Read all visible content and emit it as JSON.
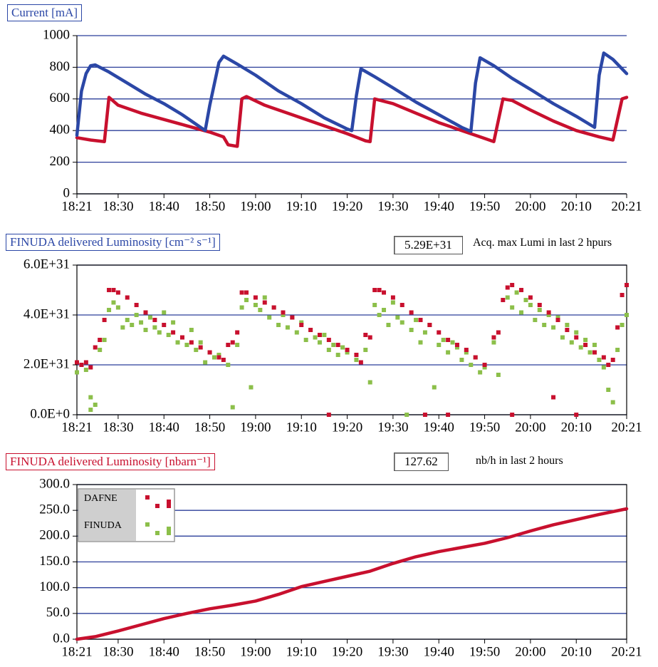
{
  "chart_data": [
    {
      "type": "line",
      "title": "Current [mA]",
      "title_color": "#2b47a6",
      "xlim": [
        "18:21",
        "20:21"
      ],
      "xticks": [
        "18:21",
        "18:30",
        "18:40",
        "18:50",
        "19:00",
        "19:10",
        "19:20",
        "19:30",
        "19:40",
        "19:50",
        "20:00",
        "20:10",
        "20:21"
      ],
      "ylim": [
        0,
        1000
      ],
      "yticks": [
        0,
        200,
        400,
        600,
        800,
        1000
      ],
      "grid": true,
      "series": [
        {
          "color": "#2b47a6",
          "x": [
            "18:21",
            "18:22",
            "18:23",
            "18:24",
            "18:25",
            "18:28",
            "18:32",
            "18:36",
            "18:40",
            "18:44",
            "18:48",
            "18:49",
            "18:50",
            "18:52",
            "18:53",
            "18:56",
            "19:00",
            "19:05",
            "19:10",
            "19:15",
            "19:20",
            "19:21",
            "19:22",
            "19:23",
            "19:26",
            "19:30",
            "19:35",
            "19:40",
            "19:45",
            "19:47",
            "19:48",
            "19:49",
            "19:52",
            "19:56",
            "20:00",
            "20:05",
            "20:10",
            "20:14",
            "20:15",
            "20:16",
            "20:18",
            "20:21"
          ],
          "values": [
            370,
            650,
            760,
            810,
            815,
            770,
            700,
            630,
            570,
            500,
            420,
            400,
            560,
            830,
            870,
            820,
            750,
            650,
            570,
            480,
            410,
            400,
            620,
            790,
            740,
            670,
            580,
            500,
            420,
            395,
            700,
            860,
            810,
            730,
            660,
            570,
            490,
            420,
            750,
            890,
            850,
            760
          ]
        },
        {
          "color": "#c8102e",
          "x": [
            "18:21",
            "18:24",
            "18:27",
            "18:28",
            "18:30",
            "18:35",
            "18:40",
            "18:45",
            "18:50",
            "18:53",
            "18:54",
            "18:56",
            "18:57",
            "18:58",
            "19:02",
            "19:08",
            "19:14",
            "19:20",
            "19:24",
            "19:25",
            "19:26",
            "19:30",
            "19:35",
            "19:40",
            "19:45",
            "19:50",
            "19:52",
            "19:54",
            "19:56",
            "20:00",
            "20:05",
            "20:10",
            "20:15",
            "20:18",
            "20:20",
            "20:21"
          ],
          "values": [
            355,
            340,
            330,
            610,
            560,
            510,
            470,
            430,
            390,
            360,
            310,
            300,
            600,
            615,
            560,
            500,
            440,
            380,
            335,
            330,
            600,
            570,
            510,
            450,
            400,
            350,
            330,
            600,
            590,
            530,
            460,
            400,
            360,
            340,
            600,
            610
          ]
        }
      ]
    },
    {
      "type": "scatter",
      "title": "FINUDA delivered Luminosity [cm⁻² s⁻¹]",
      "title_color": "#2b47a6",
      "annotations": [
        "5.29E+31",
        "Acq. max Lumi in last 2 hpurs"
      ],
      "xlim": [
        "18:21",
        "20:21"
      ],
      "xticks": [
        "18:21",
        "18:30",
        "18:40",
        "18:50",
        "19:00",
        "19:10",
        "19:20",
        "19:30",
        "19:40",
        "19:50",
        "20:00",
        "20:10",
        "20:21"
      ],
      "ylim": [
        0,
        6e+31
      ],
      "yticks": [
        {
          "value": 0,
          "label": "0.0E+0"
        },
        {
          "value": 2e+31,
          "label": "2.0E+31"
        },
        {
          "value": 4e+31,
          "label": "4.0E+31"
        },
        {
          "value": 6e+31,
          "label": "6.0E+31"
        }
      ],
      "grid": true,
      "series": [
        {
          "name": "DAFNE",
          "color": "#c8102e",
          "x": [
            "18:21",
            "18:22",
            "18:23",
            "18:24",
            "18:25",
            "18:26",
            "18:27",
            "18:28",
            "18:29",
            "18:30",
            "18:32",
            "18:34",
            "18:36",
            "18:38",
            "18:40",
            "18:42",
            "18:44",
            "18:46",
            "18:48",
            "18:50",
            "18:52",
            "18:53",
            "18:54",
            "18:55",
            "18:56",
            "18:57",
            "18:58",
            "19:00",
            "19:02",
            "19:04",
            "19:06",
            "19:08",
            "19:10",
            "19:12",
            "19:14",
            "19:16",
            "19:16",
            "19:18",
            "19:20",
            "19:22",
            "19:23",
            "19:24",
            "19:25",
            "19:26",
            "19:27",
            "19:28",
            "19:30",
            "19:32",
            "19:34",
            "19:36",
            "19:37",
            "19:38",
            "19:40",
            "19:42",
            "19:42",
            "19:44",
            "19:46",
            "19:48",
            "19:50",
            "19:52",
            "19:53",
            "19:54",
            "19:55",
            "19:56",
            "19:56",
            "19:58",
            "20:00",
            "20:02",
            "20:04",
            "20:05",
            "20:06",
            "20:08",
            "20:10",
            "20:10",
            "20:12",
            "20:14",
            "20:16",
            "20:17",
            "20:18",
            "20:19",
            "20:20",
            "20:21"
          ],
          "values": [
            2.1e+31,
            2e+31,
            2.1e+31,
            1.9e+31,
            2.7e+31,
            3e+31,
            3.8e+31,
            5e+31,
            5e+31,
            4.9e+31,
            4.7e+31,
            4.4e+31,
            4.1e+31,
            3.8e+31,
            3.6e+31,
            3.3e+31,
            3.1e+31,
            2.9e+31,
            2.7e+31,
            2.5e+31,
            2.3e+31,
            2.2e+31,
            2.8e+31,
            2.9e+31,
            3.3e+31,
            4.9e+31,
            4.9e+31,
            4.7e+31,
            4.5e+31,
            4.3e+31,
            4.1e+31,
            3.9e+31,
            3.6e+31,
            3.4e+31,
            3.2e+31,
            3e+31,
            0,
            2.8e+31,
            2.6e+31,
            2.4e+31,
            2.1e+31,
            3.2e+31,
            3.1e+31,
            5e+31,
            5e+31,
            4.9e+31,
            4.7e+31,
            4.4e+31,
            4.1e+31,
            3.8e+31,
            0,
            3.6e+31,
            3.3e+31,
            3e+31,
            0,
            2.8e+31,
            2.6e+31,
            2.3e+31,
            2e+31,
            3.1e+31,
            3.3e+31,
            4.6e+31,
            5.1e+31,
            5.2e+31,
            0,
            5e+31,
            4.7e+31,
            4.4e+31,
            4.1e+31,
            7e+30,
            3.8e+31,
            3.4e+31,
            3.1e+31,
            0,
            2.8e+31,
            2.5e+31,
            2.3e+31,
            2e+31,
            2.2e+31,
            3.5e+31,
            4.8e+31,
            5.2e+31
          ]
        },
        {
          "name": "FINUDA",
          "color": "#8cbf4a",
          "x": [
            "18:21",
            "18:22",
            "18:23",
            "18:24",
            "18:25",
            "18:24",
            "18:26",
            "18:27",
            "18:28",
            "18:29",
            "18:30",
            "18:31",
            "18:32",
            "18:33",
            "18:34",
            "18:35",
            "18:36",
            "18:37",
            "18:38",
            "18:39",
            "18:40",
            "18:41",
            "18:42",
            "18:43",
            "18:44",
            "18:45",
            "18:46",
            "18:47",
            "18:48",
            "18:49",
            "18:50",
            "18:51",
            "18:52",
            "18:54",
            "18:55",
            "18:56",
            "18:57",
            "18:58",
            "18:59",
            "19:00",
            "19:01",
            "19:02",
            "19:03",
            "19:04",
            "19:05",
            "19:06",
            "19:07",
            "19:08",
            "19:09",
            "19:10",
            "19:11",
            "19:12",
            "19:13",
            "19:14",
            "19:15",
            "19:16",
            "19:17",
            "19:18",
            "19:19",
            "19:20",
            "19:22",
            "19:24",
            "19:25",
            "19:26",
            "19:27",
            "19:28",
            "19:29",
            "19:30",
            "19:31",
            "19:32",
            "19:33",
            "19:34",
            "19:35",
            "19:36",
            "19:37",
            "19:38",
            "19:39",
            "19:40",
            "19:41",
            "19:42",
            "19:43",
            "19:44",
            "19:45",
            "19:46",
            "19:47",
            "19:48",
            "19:49",
            "19:50",
            "19:52",
            "19:53",
            "19:55",
            "19:56",
            "19:57",
            "19:58",
            "19:59",
            "20:00",
            "20:01",
            "20:02",
            "20:03",
            "20:04",
            "20:05",
            "20:06",
            "20:07",
            "20:08",
            "20:09",
            "20:10",
            "20:11",
            "20:12",
            "20:13",
            "20:14",
            "20:15",
            "20:16",
            "20:17",
            "20:18",
            "20:19",
            "20:20",
            "20:21"
          ],
          "values": [
            1.7e+31,
            2e+31,
            1.8e+31,
            2e+30,
            4e+30,
            7e+30,
            2.6e+31,
            3e+31,
            4.2e+31,
            4.5e+31,
            4.3e+31,
            3.5e+31,
            3.8e+31,
            3.6e+31,
            4e+31,
            3.7e+31,
            3.4e+31,
            3.9e+31,
            3.5e+31,
            3.3e+31,
            4.1e+31,
            3.2e+31,
            3.7e+31,
            2.9e+31,
            3.1e+31,
            2.8e+31,
            3.4e+31,
            2.6e+31,
            2.9e+31,
            2.1e+31,
            2.5e+31,
            2.3e+31,
            2.4e+31,
            2e+31,
            3e+30,
            2.8e+31,
            4.3e+31,
            4.6e+31,
            1.1e+31,
            4.4e+31,
            4.2e+31,
            4.7e+31,
            3.9e+31,
            4.3e+31,
            3.6e+31,
            4e+31,
            3.5e+31,
            3.9e+31,
            3.3e+31,
            3.7e+31,
            3e+31,
            3.4e+31,
            3.1e+31,
            2.9e+31,
            3.2e+31,
            2.6e+31,
            2.8e+31,
            2.4e+31,
            2.7e+31,
            2.5e+31,
            2.2e+31,
            2.6e+31,
            1.3e+31,
            4.4e+31,
            4e+31,
            4.2e+31,
            3.6e+31,
            4.5e+31,
            3.9e+31,
            3.7e+31,
            0,
            3.4e+31,
            3.8e+31,
            2.9e+31,
            3.3e+31,
            3.6e+31,
            1.1e+31,
            2.8e+31,
            3e+31,
            2.5e+31,
            2.9e+31,
            2.7e+31,
            2.2e+31,
            2.5e+31,
            2e+31,
            2.3e+31,
            1.7e+31,
            1.9e+31,
            2.9e+31,
            1.6e+31,
            4.7e+31,
            4.3e+31,
            4.9e+31,
            4.1e+31,
            4.6e+31,
            4.4e+31,
            3.8e+31,
            4.2e+31,
            3.6e+31,
            4e+31,
            3.5e+31,
            3.9e+31,
            3.1e+31,
            3.6e+31,
            2.9e+31,
            3.3e+31,
            2.7e+31,
            3e+31,
            2.5e+31,
            2.8e+31,
            2.2e+31,
            1.9e+31,
            1e+31,
            5e+30,
            2.6e+31,
            3.6e+31,
            4e+31
          ]
        }
      ]
    },
    {
      "type": "line",
      "title": "FINUDA delivered Luminosity [nbarn⁻¹]",
      "title_color": "#c8102e",
      "annotations": [
        "127.62",
        "nb/h in last 2 hours"
      ],
      "legend": "upper left",
      "xlim": [
        "18:21",
        "20:21"
      ],
      "xticks": [
        "18:21",
        "18:30",
        "18:40",
        "18:50",
        "19:00",
        "19:10",
        "19:20",
        "19:30",
        "19:40",
        "19:50",
        "20:00",
        "20:10",
        "20:21"
      ],
      "ylim": [
        0,
        300
      ],
      "yticks": [
        {
          "value": 0,
          "label": "0.0"
        },
        {
          "value": 50,
          "label": "50.0"
        },
        {
          "value": 100,
          "label": "100.0"
        },
        {
          "value": 150,
          "label": "150.0"
        },
        {
          "value": 200,
          "label": "200.0"
        },
        {
          "value": 250,
          "label": "250.0"
        },
        {
          "value": 300,
          "label": "300.0"
        }
      ],
      "grid": true,
      "series": [
        {
          "color": "#c8102e",
          "x": [
            "18:21",
            "18:25",
            "18:30",
            "18:35",
            "18:40",
            "18:45",
            "18:50",
            "18:55",
            "19:00",
            "19:05",
            "19:10",
            "19:15",
            "19:20",
            "19:25",
            "19:30",
            "19:35",
            "19:40",
            "19:45",
            "19:50",
            "19:55",
            "20:00",
            "20:05",
            "20:10",
            "20:15",
            "20:21"
          ],
          "values": [
            0,
            5,
            16,
            28,
            40,
            50,
            59,
            66,
            74,
            87,
            102,
            112,
            122,
            132,
            147,
            160,
            170,
            178,
            186,
            197,
            210,
            222,
            232,
            242,
            253
          ]
        }
      ]
    }
  ]
}
